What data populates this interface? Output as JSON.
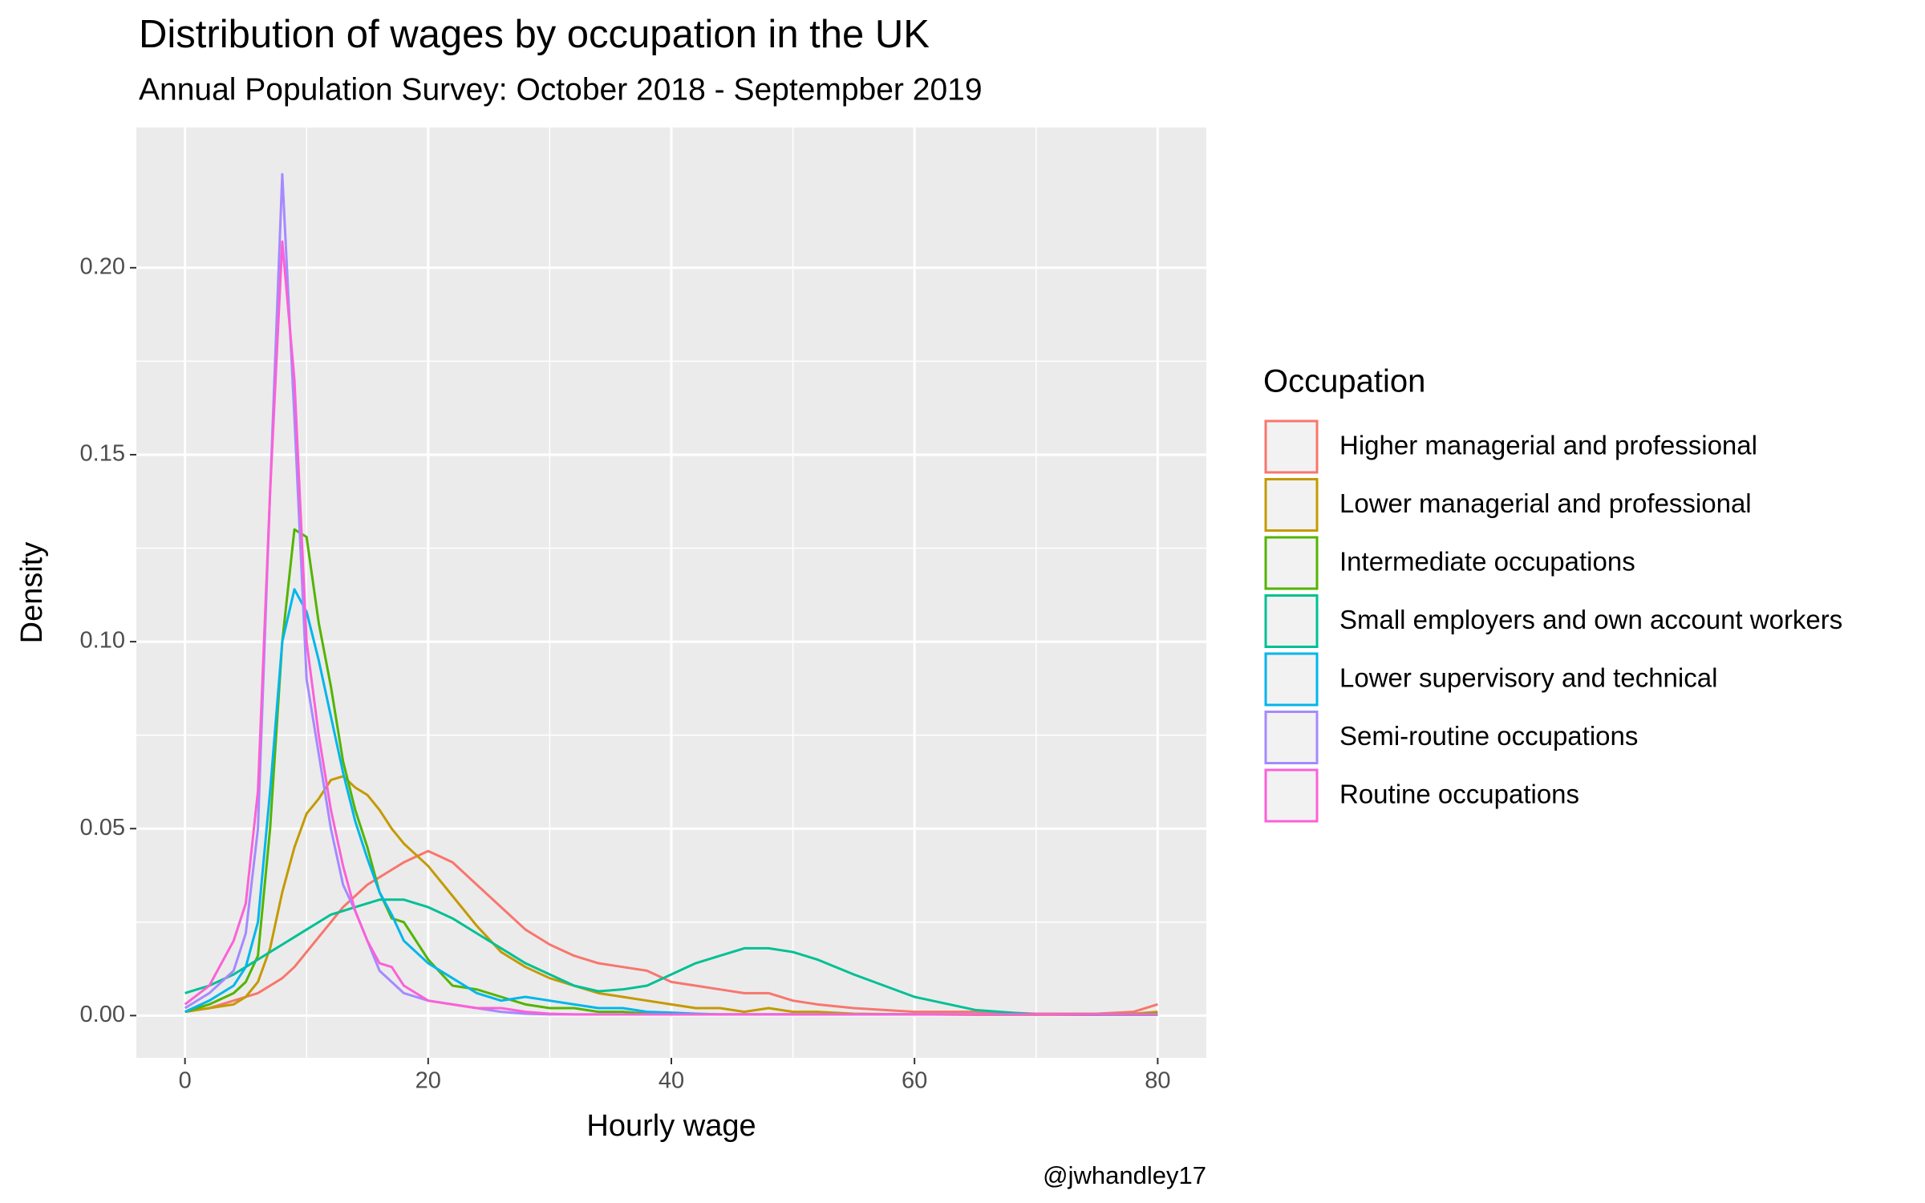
{
  "chart_data": {
    "type": "line",
    "title": "Distribution of wages by occupation in the UK",
    "subtitle": "Annual Population Survey: October 2018 - Septempber 2019",
    "x_label": "Hourly wage",
    "y_label": "Density",
    "caption": "@jwhandley17",
    "legend_title": "Occupation",
    "legend_position": "right",
    "grid": true,
    "xlim": [
      -4,
      84
    ],
    "ylim": [
      -0.0113,
      0.2375
    ],
    "xticks": [
      0,
      20,
      40,
      60,
      80
    ],
    "yticks": [
      {
        "value": 0,
        "label": "0.00"
      },
      {
        "value": 0.05,
        "label": "0.05"
      },
      {
        "value": 0.1,
        "label": "0.10"
      },
      {
        "value": 0.15,
        "label": "0.15"
      },
      {
        "value": 0.2,
        "label": "0.20"
      }
    ],
    "x": [
      0,
      2,
      4,
      5,
      6,
      7,
      8,
      9,
      10,
      11,
      12,
      13,
      14,
      15,
      16,
      17,
      18,
      20,
      22,
      24,
      26,
      28,
      30,
      32,
      34,
      36,
      38,
      40,
      42,
      44,
      46,
      48,
      50,
      52,
      55,
      60,
      65,
      70,
      75,
      78,
      80
    ],
    "series": [
      {
        "name": "Higher managerial and professional",
        "color": "#F8766D",
        "values": [
          0.001,
          0.002,
          0.004,
          0.005,
          0.006,
          0.008,
          0.01,
          0.013,
          0.017,
          0.021,
          0.025,
          0.029,
          0.032,
          0.035,
          0.037,
          0.039,
          0.041,
          0.044,
          0.041,
          0.035,
          0.029,
          0.023,
          0.019,
          0.016,
          0.014,
          0.013,
          0.012,
          0.009,
          0.008,
          0.007,
          0.006,
          0.006,
          0.004,
          0.003,
          0.002,
          0.001,
          0.001,
          0.0005,
          0.0005,
          0.001,
          0.003
        ]
      },
      {
        "name": "Lower managerial and professional",
        "color": "#C49A00",
        "values": [
          0.001,
          0.002,
          0.003,
          0.005,
          0.009,
          0.018,
          0.033,
          0.045,
          0.054,
          0.058,
          0.063,
          0.064,
          0.061,
          0.059,
          0.055,
          0.05,
          0.046,
          0.04,
          0.032,
          0.024,
          0.017,
          0.013,
          0.01,
          0.008,
          0.006,
          0.005,
          0.004,
          0.003,
          0.002,
          0.002,
          0.001,
          0.002,
          0.001,
          0.001,
          0.0005,
          0.0003,
          0.0002,
          0.0002,
          0.0002,
          0.0005,
          0.001
        ]
      },
      {
        "name": "Intermediate occupations",
        "color": "#53B400",
        "values": [
          0.001,
          0.003,
          0.006,
          0.009,
          0.016,
          0.05,
          0.1,
          0.13,
          0.128,
          0.105,
          0.088,
          0.068,
          0.055,
          0.045,
          0.033,
          0.026,
          0.025,
          0.015,
          0.008,
          0.007,
          0.005,
          0.003,
          0.002,
          0.002,
          0.001,
          0.001,
          0.0005,
          0.0003,
          0.0003,
          0.0003,
          0.0003,
          0.0003,
          0.0003,
          0.0003,
          0.0003,
          0.0003,
          0.0003,
          0.0003,
          0.0003,
          0.0003,
          0.0005
        ]
      },
      {
        "name": "Small employers and own account workers",
        "color": "#00C094",
        "values": [
          0.006,
          0.008,
          0.011,
          0.013,
          0.015,
          0.017,
          0.019,
          0.021,
          0.023,
          0.025,
          0.027,
          0.028,
          0.029,
          0.03,
          0.031,
          0.031,
          0.031,
          0.029,
          0.026,
          0.022,
          0.018,
          0.014,
          0.011,
          0.008,
          0.0065,
          0.007,
          0.008,
          0.011,
          0.014,
          0.016,
          0.018,
          0.018,
          0.017,
          0.015,
          0.011,
          0.005,
          0.0015,
          0.0003,
          0.0002,
          0.0002,
          0.0002
        ]
      },
      {
        "name": "Lower supervisory and technical",
        "color": "#00B6EB",
        "values": [
          0.001,
          0.004,
          0.008,
          0.013,
          0.025,
          0.06,
          0.1,
          0.114,
          0.108,
          0.095,
          0.08,
          0.065,
          0.052,
          0.042,
          0.033,
          0.027,
          0.02,
          0.014,
          0.01,
          0.006,
          0.004,
          0.005,
          0.004,
          0.003,
          0.002,
          0.002,
          0.001,
          0.0008,
          0.0005,
          0.0003,
          0.0003,
          0.0003,
          0.0003,
          0.0003,
          0.0003,
          0.0003,
          0.0003,
          0.0003,
          0.0003,
          0.0003,
          0.0003
        ]
      },
      {
        "name": "Semi-routine occupations",
        "color": "#A58AFF",
        "values": [
          0.002,
          0.006,
          0.012,
          0.022,
          0.05,
          0.14,
          0.225,
          0.16,
          0.09,
          0.07,
          0.05,
          0.035,
          0.028,
          0.02,
          0.012,
          0.009,
          0.006,
          0.004,
          0.003,
          0.002,
          0.001,
          0.0005,
          0.0003,
          0.0003,
          0.0003,
          0.0003,
          0.0003,
          0.0003,
          0.0003,
          0.0003,
          0.0003,
          0.0003,
          0.0003,
          0.0003,
          0.0003,
          0.0003,
          0.0003,
          0.0003,
          0.0003,
          0.0003,
          0.0003
        ]
      },
      {
        "name": "Routine occupations",
        "color": "#FB61D7",
        "values": [
          0.003,
          0.008,
          0.02,
          0.03,
          0.06,
          0.14,
          0.207,
          0.17,
          0.1,
          0.075,
          0.055,
          0.04,
          0.028,
          0.02,
          0.014,
          0.013,
          0.008,
          0.004,
          0.003,
          0.002,
          0.002,
          0.001,
          0.0005,
          0.0003,
          0.0003,
          0.0003,
          0.0003,
          0.0003,
          0.0003,
          0.0003,
          0.0003,
          0.0003,
          0.0003,
          0.0003,
          0.0003,
          0.0003,
          0.0003,
          0.0003,
          0.0003,
          0.0003,
          0.0003
        ]
      }
    ]
  }
}
